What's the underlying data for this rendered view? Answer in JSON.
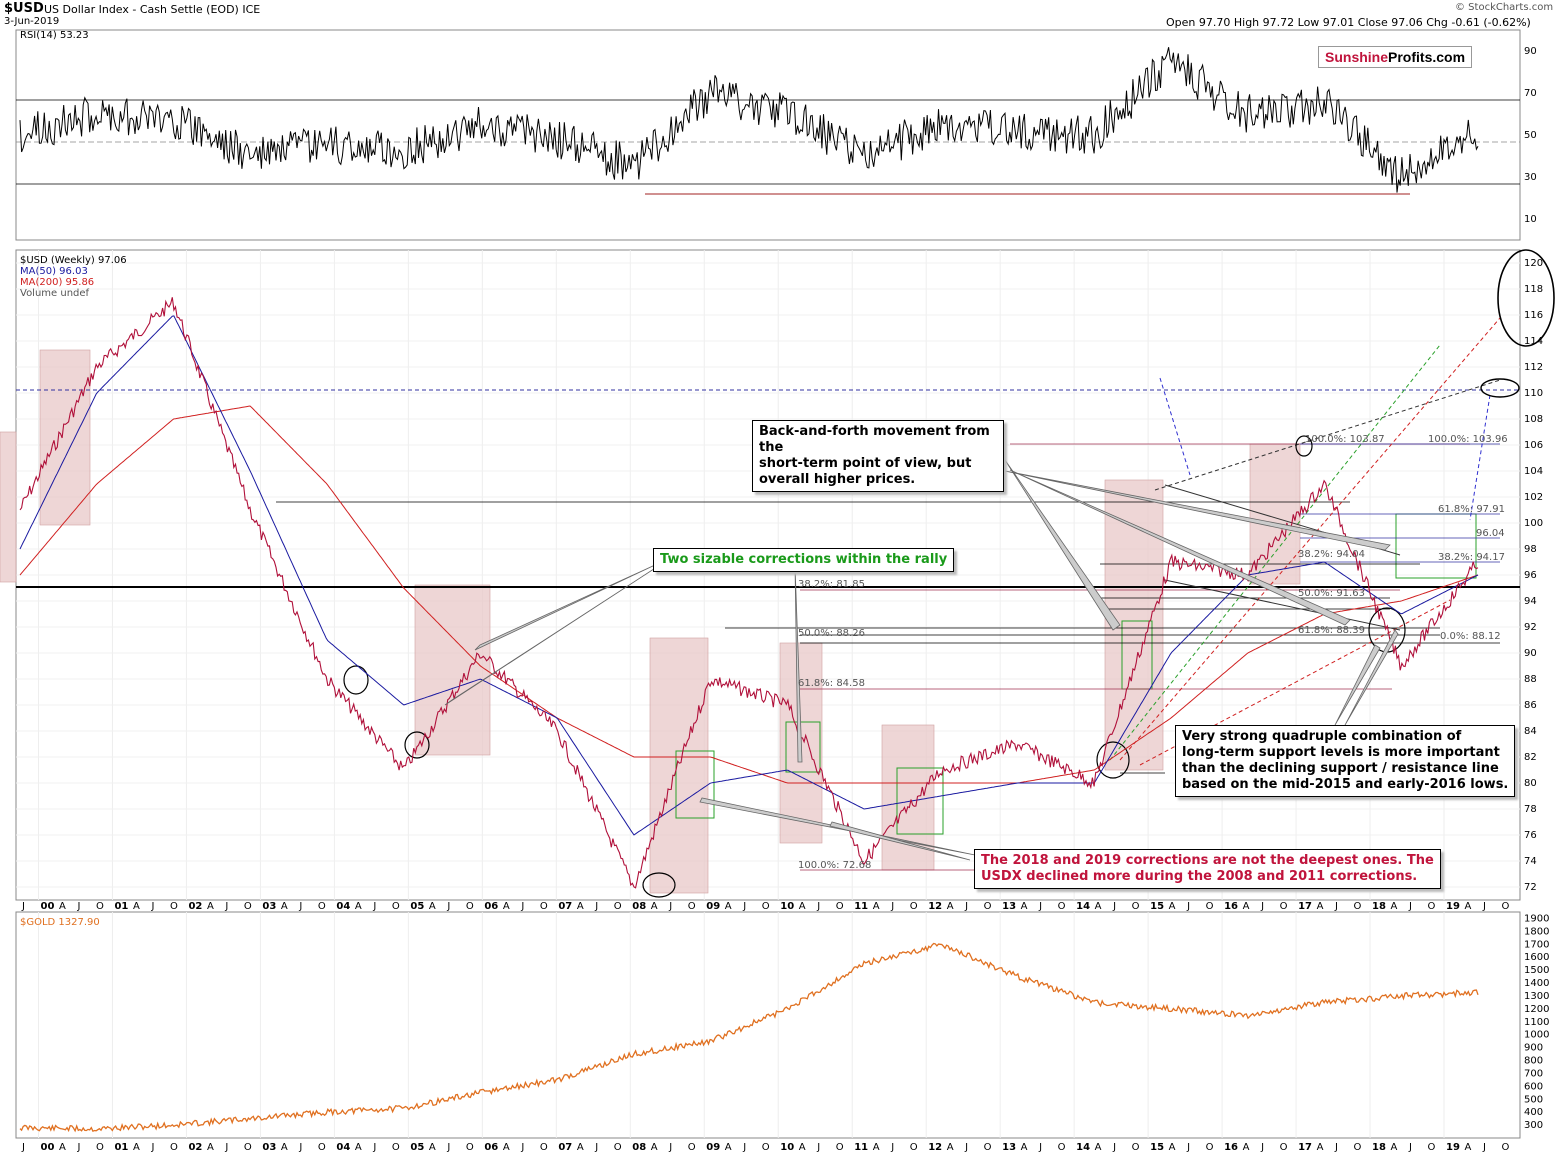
{
  "header": {
    "symbol": "$USD",
    "description": "US Dollar Index - Cash Settle (EOD) ICE",
    "date": "3-Jun-2019",
    "stats": "Open 97.70  High 97.72  Low 97.01  Close 97.06  Chg -0.61 (-0.62%)",
    "credit": "© StockCharts.com"
  },
  "logo": {
    "part1": "Sunshine",
    "part2": "Profits.com"
  },
  "colors": {
    "usd": "#b0103a",
    "ma50": "#1a1aa0",
    "ma200": "#d02020",
    "gold": "#e07020",
    "rsi": "#000000",
    "shade": "#e8c8c8",
    "green_box": "#2aa02a",
    "annotation_green": "#1a9a1a",
    "annotation_red": "#c0143c"
  },
  "rsi_panel": {
    "label": "RSI(14) 53.23",
    "levels": [
      "90",
      "70",
      "50",
      "30",
      "10"
    ]
  },
  "price_panel": {
    "legend": [
      "$USD (Weekly) 97.06",
      "MA(50) 96.03",
      "MA(200) 95.86",
      "Volume undef"
    ],
    "ticks": [
      "120",
      "118",
      "116",
      "114",
      "112",
      "110",
      "108",
      "106",
      "104",
      "102",
      "100",
      "98",
      "96",
      "94",
      "92",
      "90",
      "88",
      "86",
      "84",
      "82",
      "80",
      "78",
      "76",
      "74",
      "72"
    ],
    "fib_labels": [
      "38.2%: 81.85",
      "50.0%: 88.26",
      "61.8%: 84.58",
      "100.0%: 72.68",
      "100.0%: 103.87",
      "100.0%: 103.96",
      "61.8%: 97.91",
      "96.04",
      "38.2%: 94.17",
      "38.2%: 94.04",
      "50.0%: 91.63",
      "61.8%: 88.39",
      "0.0%: 88.12"
    ]
  },
  "gold_panel": {
    "label": "$GOLD 1327.90",
    "ticks": [
      "1900",
      "1800",
      "1700",
      "1600",
      "1500",
      "1400",
      "1300",
      "1200",
      "1100",
      "1000",
      "900",
      "800",
      "700",
      "600",
      "500",
      "400",
      "300"
    ]
  },
  "x_axis": {
    "labels": [
      "J",
      "00",
      "A",
      "J",
      "O",
      "01",
      "A",
      "J",
      "O",
      "02",
      "A",
      "J",
      "O",
      "03",
      "A",
      "J",
      "O",
      "04",
      "A",
      "J",
      "O",
      "05",
      "A",
      "J",
      "O",
      "06",
      "A",
      "J",
      "O",
      "07",
      "A",
      "J",
      "O",
      "08",
      "A",
      "J",
      "O",
      "09",
      "A",
      "J",
      "O",
      "10",
      "A",
      "J",
      "O",
      "11",
      "A",
      "J",
      "O",
      "12",
      "A",
      "J",
      "O",
      "13",
      "A",
      "J",
      "O",
      "14",
      "A",
      "J",
      "O",
      "15",
      "A",
      "J",
      "O",
      "16",
      "A",
      "J",
      "O",
      "17",
      "A",
      "J",
      "O",
      "18",
      "A",
      "J",
      "O",
      "19",
      "A",
      "J",
      "O"
    ]
  },
  "annotations": {
    "back_and_forth": [
      "Back-and-forth movement from the",
      "short-term point of view, but",
      "overall higher prices."
    ],
    "two_corrections": "Two sizable corrections within the rally",
    "deepest": [
      "The 2018 and 2019 corrections are not the deepest ones. The",
      "USDX declined more during the 2008 and 2011 corrections."
    ],
    "quadruple": [
      "Very strong quadruple combination of",
      "long-term support levels is more important",
      "than the declining support / resistance line",
      "based on the mid-2015 and early-2016 lows."
    ]
  },
  "chart_data": {
    "type": "line",
    "title": "$USD US Dollar Index - Cash Settle (EOD) ICE",
    "x": [
      "2000",
      "2001",
      "2002",
      "2003",
      "2004",
      "2005",
      "2006",
      "2007",
      "2008",
      "2009",
      "2010",
      "2011",
      "2012",
      "2013",
      "2014",
      "2015",
      "2016",
      "2017",
      "2018",
      "2019"
    ],
    "series": [
      {
        "name": "$USD (Weekly) 97.06",
        "values": [
          101,
          112,
          117,
          101,
          88,
          81,
          90,
          84,
          72,
          88,
          86,
          74,
          81,
          83,
          80,
          97,
          96,
          103,
          89,
          97
        ]
      },
      {
        "name": "MA(50) 96.03",
        "values": [
          98,
          110,
          116,
          104,
          91,
          86,
          88,
          85,
          76,
          80,
          81,
          78,
          79,
          80,
          80,
          90,
          96,
          97,
          93,
          96
        ]
      },
      {
        "name": "MA(200) 95.86",
        "values": [
          96,
          103,
          108,
          109,
          103,
          95,
          89,
          85,
          82,
          82,
          80,
          80,
          80,
          80,
          81,
          85,
          90,
          93,
          94,
          96
        ]
      },
      {
        "name": "$GOLD 1327.90",
        "values": [
          280,
          270,
          300,
          350,
          400,
          430,
          550,
          650,
          850,
          950,
          1200,
          1550,
          1700,
          1450,
          1250,
          1200,
          1150,
          1250,
          1300,
          1327.9
        ]
      },
      {
        "name": "RSI(14) 53.23",
        "values": [
          50,
          60,
          58,
          40,
          45,
          42,
          55,
          48,
          35,
          70,
          60,
          40,
          55,
          52,
          50,
          85,
          60,
          65,
          30,
          53.23
        ]
      }
    ],
    "ylim": [
      71,
      121
    ]
  }
}
